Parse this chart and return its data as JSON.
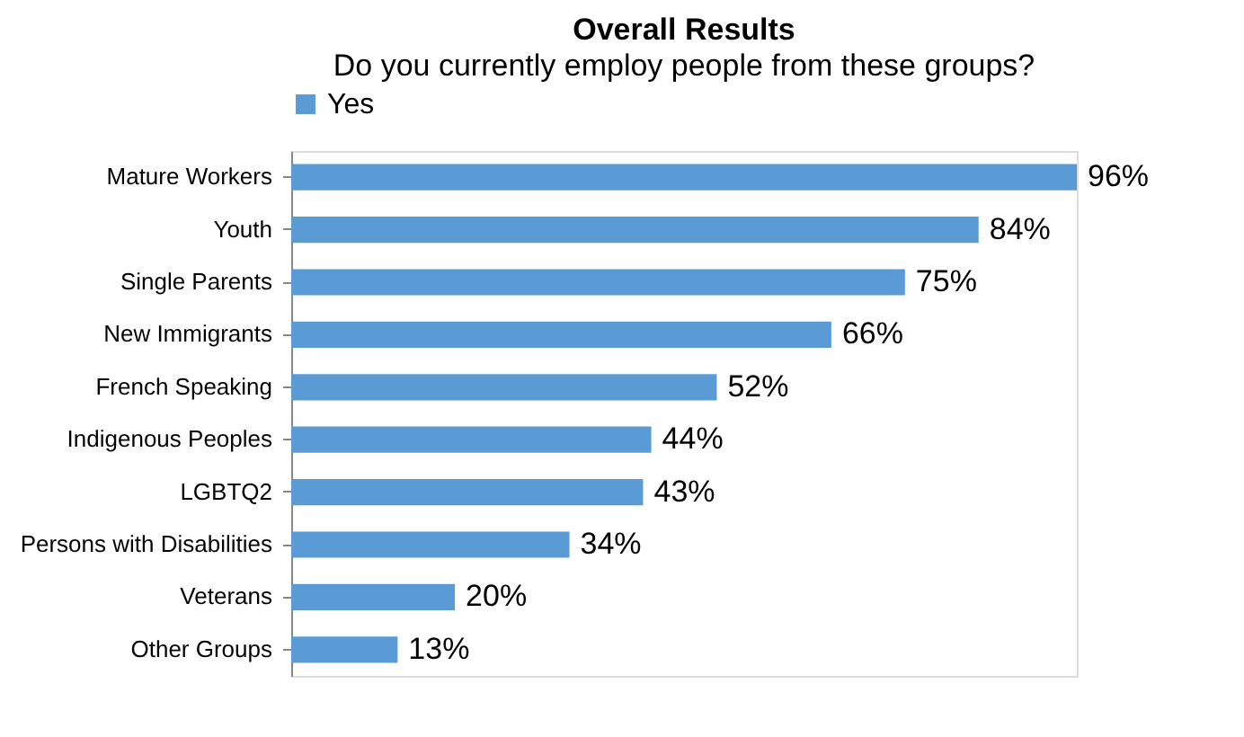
{
  "chart_data": {
    "type": "bar",
    "orientation": "horizontal",
    "title": "Overall Results",
    "subtitle": "Do you currently employ people from these groups?",
    "categories": [
      "Mature Workers",
      "Youth",
      "Single Parents",
      "New Immigrants",
      "French Speaking",
      "Indigenous Peoples",
      "LGBTQ2",
      "Persons with Disabilities",
      "Veterans",
      "Other Groups"
    ],
    "series": [
      {
        "name": "Yes",
        "color": "#5b9bd5",
        "values": [
          96,
          84,
          75,
          66,
          52,
          44,
          43,
          34,
          20,
          13
        ],
        "value_labels": [
          "96%",
          "84%",
          "75%",
          "66%",
          "52%",
          "44%",
          "43%",
          "34%",
          "20%",
          "13%"
        ]
      }
    ],
    "legend": "top"
  }
}
